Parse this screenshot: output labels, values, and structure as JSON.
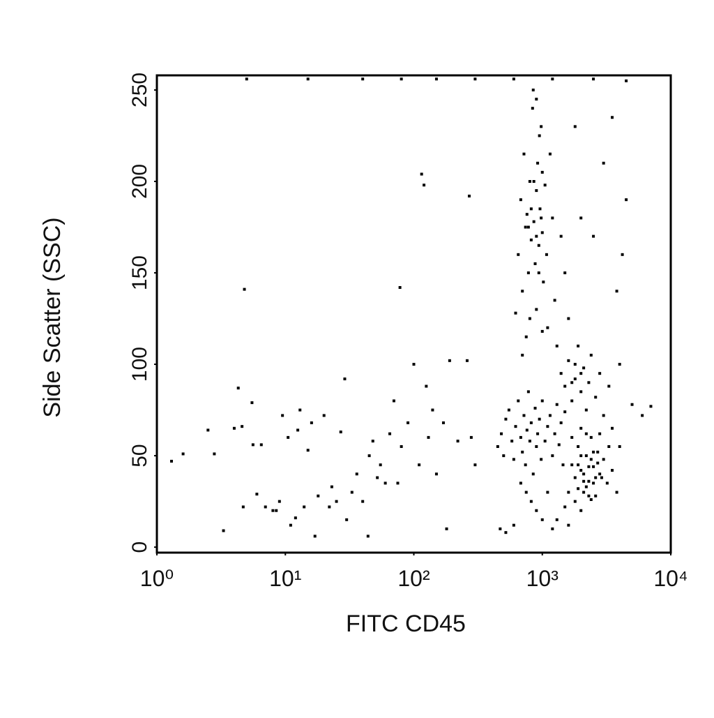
{
  "chart_data": {
    "type": "scatter",
    "x_label": "FITC CD45",
    "y_label": "Side Scatter (SSC)",
    "xscale": "log",
    "color": "#000000",
    "xlim": [
      1,
      10000
    ],
    "xticks": [
      {
        "value": 1,
        "label": "10⁰"
      },
      {
        "value": 10,
        "label": "10¹"
      },
      {
        "value": 100,
        "label": "10²"
      },
      {
        "value": 1000,
        "label": "10³"
      },
      {
        "value": 10000,
        "label": "10⁴"
      }
    ],
    "ylim": [
      -3,
      258
    ],
    "yticks": [
      0,
      50,
      100,
      150,
      200,
      250
    ],
    "x": [
      1.3,
      1.6,
      2.5,
      2.8,
      3.3,
      4,
      4.3,
      4.6,
      4.8,
      4.7,
      5.5,
      5.6,
      6,
      6.5,
      7,
      8,
      8.5,
      9,
      9.5,
      10.5,
      11,
      12,
      12.5,
      13,
      14,
      15,
      16,
      17,
      18,
      20,
      22,
      23,
      25,
      27,
      29,
      30,
      33,
      36,
      40,
      44,
      45,
      48,
      52,
      55,
      60,
      65,
      70,
      75,
      78,
      80,
      90,
      100,
      110,
      115,
      120,
      125,
      130,
      140,
      150,
      170,
      180,
      190,
      220,
      260,
      270,
      280,
      300,
      5,
      15,
      40,
      80,
      150,
      300,
      600,
      1200,
      2500,
      450,
      480,
      500,
      520,
      550,
      580,
      600,
      620,
      650,
      680,
      700,
      720,
      740,
      760,
      780,
      800,
      820,
      850,
      880,
      900,
      920,
      950,
      980,
      1000,
      1050,
      1100,
      1150,
      1200,
      1250,
      1300,
      1350,
      1400,
      1450,
      1500,
      470,
      520,
      600,
      680,
      750,
      820,
      900,
      1000,
      1100,
      1200,
      620,
      650,
      680,
      700,
      720,
      740,
      760,
      780,
      800,
      820,
      840,
      860,
      880,
      900,
      920,
      940,
      960,
      980,
      1000,
      1020,
      1050,
      1080,
      1100,
      1150,
      1200,
      1250,
      1300,
      1400,
      1500,
      1600,
      780,
      820,
      860,
      900,
      940,
      980,
      850,
      900,
      950,
      1000,
      700,
      750,
      800,
      900,
      1000,
      1400,
      1500,
      1600,
      1700,
      1800,
      1900,
      2000,
      2100,
      2200,
      2300,
      2400,
      2600,
      2800,
      3000,
      3300,
      4000,
      5000,
      6000,
      7000,
      1800,
      2000,
      1700,
      1600,
      1700,
      1800,
      1900,
      2000,
      2100,
      2200,
      2300,
      2400,
      2500,
      2600,
      2700,
      2800,
      3000,
      3200,
      3500,
      3800,
      4000,
      1800,
      2000,
      2200,
      2400,
      2600,
      1900,
      2100,
      2300,
      2500,
      2700,
      2900,
      2000,
      2200,
      2400,
      1700,
      3300,
      1500,
      1300,
      1600,
      2000,
      2800,
      3500,
      2100,
      2300,
      2500,
      1900,
      4500,
      4200,
      3800,
      4500,
      3500,
      3000,
      2500,
      2000,
      1800
    ],
    "values": [
      47,
      51,
      64,
      51,
      9,
      65,
      87,
      66,
      141,
      22,
      79,
      56,
      29,
      56,
      22,
      20,
      20,
      25,
      72,
      60,
      12,
      16,
      64,
      75,
      22,
      53,
      68,
      6,
      28,
      72,
      22,
      33,
      25,
      63,
      92,
      15,
      30,
      40,
      25,
      6,
      50,
      58,
      38,
      45,
      35,
      62,
      80,
      35,
      142,
      55,
      68,
      100,
      45,
      204,
      198,
      88,
      60,
      75,
      40,
      68,
      10,
      102,
      58,
      102,
      192,
      60,
      45,
      256,
      256,
      256,
      256,
      256,
      256,
      256,
      256,
      256,
      55,
      62,
      50,
      70,
      75,
      58,
      48,
      66,
      80,
      60,
      52,
      72,
      45,
      64,
      85,
      58,
      68,
      40,
      76,
      55,
      62,
      70,
      48,
      80,
      58,
      66,
      72,
      50,
      62,
      78,
      56,
      68,
      45,
      74,
      10,
      8,
      12,
      35,
      30,
      25,
      20,
      15,
      30,
      10,
      128,
      160,
      190,
      140,
      215,
      175,
      182,
      150,
      200,
      168,
      240,
      178,
      155,
      195,
      210,
      165,
      185,
      230,
      172,
      145,
      198,
      160,
      120,
      215,
      180,
      135,
      110,
      170,
      150,
      125,
      175,
      185,
      200,
      170,
      150,
      180,
      250,
      245,
      225,
      205,
      105,
      115,
      125,
      130,
      118,
      95,
      88,
      102,
      80,
      92,
      110,
      85,
      98,
      75,
      90,
      105,
      82,
      95,
      72,
      88,
      100,
      78,
      72,
      77,
      100,
      95,
      90,
      30,
      45,
      38,
      55,
      42,
      30,
      50,
      36,
      60,
      44,
      28,
      52,
      40,
      48,
      35,
      42,
      30,
      55,
      25,
      20,
      62,
      26,
      38,
      45,
      40,
      44,
      35,
      46,
      38,
      50,
      33,
      48,
      60,
      55,
      22,
      15,
      12,
      65,
      62,
      65,
      36,
      28,
      52,
      32,
      190,
      160,
      140,
      255,
      235,
      210,
      170,
      180,
      230
    ]
  }
}
